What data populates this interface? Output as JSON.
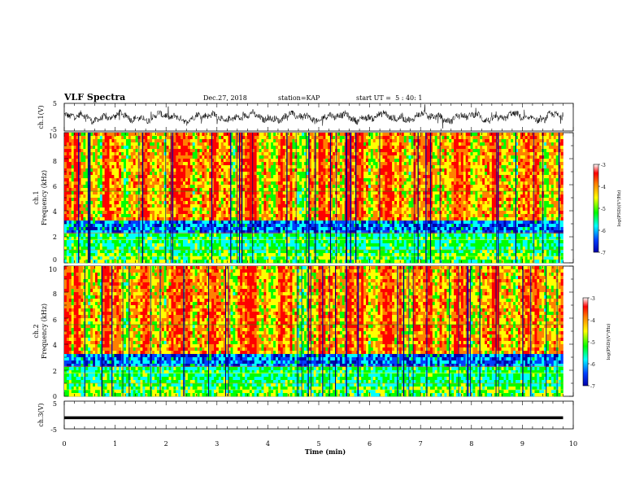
{
  "header": {
    "title": "VLF Spectra",
    "date": "Dec.27, 2018",
    "station": "station=KAP",
    "start": "start UT =  5 : 40: 1"
  },
  "chart_data": [
    {
      "type": "line",
      "panel": "waveform-ch1",
      "ylabel": "ch.1(V)",
      "ylim": [
        -5,
        5
      ],
      "yticks": [
        "5",
        "-5"
      ],
      "xlim": [
        0,
        10
      ],
      "style": "dense noisy trace oscillating between about -2.5 and 2.5 V",
      "color": "#000000"
    },
    {
      "type": "heatmap",
      "panel": "spectrogram-ch1",
      "ylabel": "ch.1\nFrequency (kHz)",
      "ylim": [
        0,
        10
      ],
      "yticks": [
        "0",
        "2",
        "4",
        "6",
        "8",
        "10"
      ],
      "xlim": [
        0,
        9.8
      ],
      "colorbar": {
        "label": "log(PSD)(V²/Hz)",
        "range": [
          -7,
          -3
        ],
        "ticks": [
          "-3",
          "-4",
          "-5",
          "-6",
          "-7"
        ],
        "colors": [
          "#0000aa",
          "#0040ff",
          "#00ffff",
          "#00ff00",
          "#ffff00",
          "#ff8000",
          "#ff0000",
          "#ffffff"
        ]
      }
    },
    {
      "type": "heatmap",
      "panel": "spectrogram-ch2",
      "ylabel": "ch.2\nFrequency (kHz)",
      "ylim": [
        0,
        10
      ],
      "yticks": [
        "0",
        "2",
        "4",
        "6",
        "8",
        "10"
      ],
      "xlim": [
        0,
        9.8
      ],
      "colorbar": {
        "label": "log(PSD)(V²/Hz)",
        "range": [
          -7,
          -3
        ],
        "ticks": [
          "-3",
          "-4",
          "-5",
          "-6",
          "-7"
        ],
        "colors": [
          "#0000aa",
          "#0040ff",
          "#00ffff",
          "#00ff00",
          "#ffff00",
          "#ff8000",
          "#ff0000",
          "#ffffff"
        ]
      }
    },
    {
      "type": "line",
      "panel": "waveform-ch3",
      "ylabel": "ch.3(V)",
      "ylim": [
        -5,
        5
      ],
      "yticks": [
        "5",
        "-5"
      ],
      "xlim": [
        0,
        10
      ],
      "x": [
        0,
        9.8
      ],
      "values": [
        -1,
        -1
      ],
      "color": "#000000"
    }
  ],
  "xaxis": {
    "label": "Time (min)",
    "ticks": [
      "0",
      "1",
      "2",
      "3",
      "4",
      "5",
      "6",
      "7",
      "8",
      "9",
      "10"
    ]
  }
}
